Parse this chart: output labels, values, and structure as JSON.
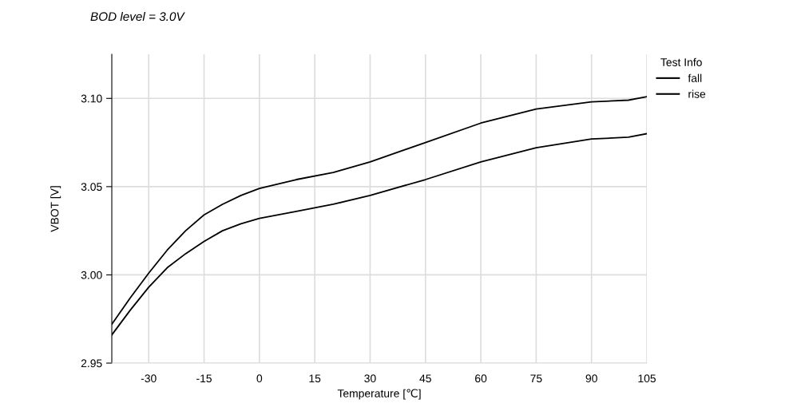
{
  "chart_data": {
    "type": "line",
    "subtitle": "BOD level = 3.0V",
    "xlabel": "Temperature [℃]",
    "ylabel": "VBOT [V]",
    "legend_title": "Test Info",
    "x": [
      -40,
      -35,
      -30,
      -25,
      -20,
      -15,
      -10,
      -5,
      0,
      10,
      20,
      30,
      45,
      60,
      75,
      90,
      100,
      105
    ],
    "series": [
      {
        "name": "fall",
        "color": "#000000",
        "values": [
          2.966,
          2.98,
          2.993,
          3.004,
          3.012,
          3.019,
          3.025,
          3.029,
          3.032,
          3.036,
          3.04,
          3.045,
          3.054,
          3.064,
          3.072,
          3.077,
          3.078,
          3.08
        ]
      },
      {
        "name": "rise",
        "color": "#000000",
        "values": [
          2.972,
          2.987,
          3.001,
          3.014,
          3.025,
          3.034,
          3.04,
          3.045,
          3.049,
          3.054,
          3.058,
          3.064,
          3.075,
          3.086,
          3.094,
          3.098,
          3.099,
          3.101
        ]
      }
    ],
    "xlim": [
      -40,
      105
    ],
    "xticks": [
      -30,
      -15,
      0,
      15,
      30,
      45,
      60,
      75,
      90,
      105
    ],
    "ylim": [
      2.95,
      3.125
    ],
    "yticks": [
      2.95,
      {
        "value": 3.0,
        "label": "3.00"
      },
      3.05,
      {
        "value": 3.1,
        "label": "3.10"
      }
    ],
    "grid": true,
    "legend": "top right",
    "marker": "none",
    "line_style": "solid"
  }
}
